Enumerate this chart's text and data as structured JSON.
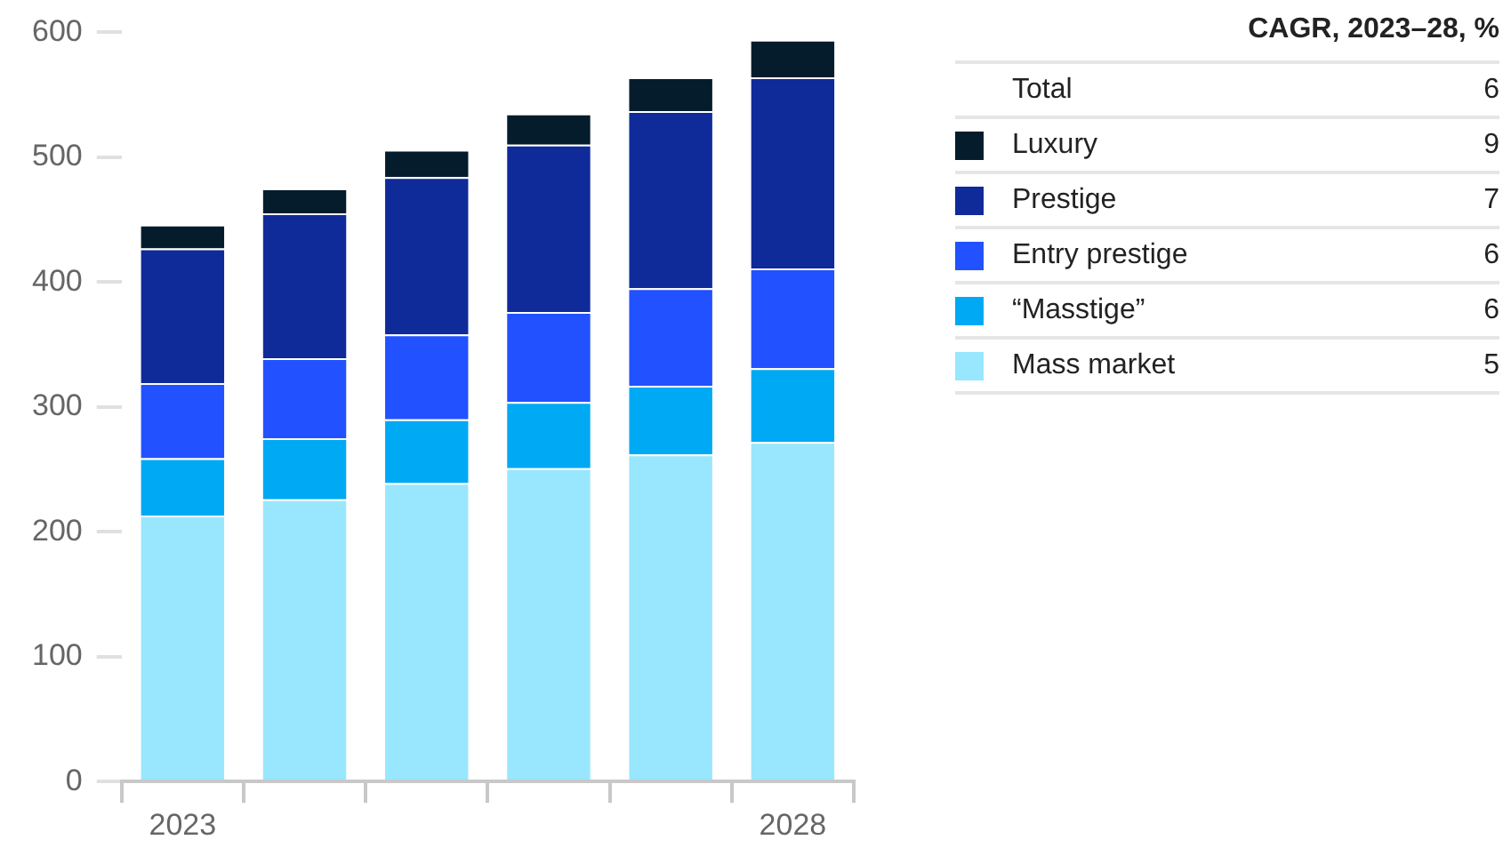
{
  "chart_data": {
    "type": "bar",
    "stacked": true,
    "categories": [
      "2023",
      null,
      null,
      null,
      null,
      "2028"
    ],
    "series": [
      {
        "name": "Mass market",
        "color": "#99e6ff",
        "values": [
          213,
          226,
          239,
          251,
          262,
          272
        ]
      },
      {
        "name": "“Masstige”",
        "color": "#00a9f4",
        "values": [
          46,
          49,
          51,
          53,
          55,
          59
        ]
      },
      {
        "name": "Entry prestige",
        "color": "#2251ff",
        "values": [
          60,
          64,
          68,
          72,
          78,
          80
        ]
      },
      {
        "name": "Prestige",
        "color": "#0f2a99",
        "values": [
          108,
          116,
          126,
          134,
          142,
          153
        ]
      },
      {
        "name": "Luxury",
        "color": "#051c2c",
        "values": [
          19,
          20,
          22,
          25,
          27,
          30
        ]
      }
    ],
    "ylim": [
      0,
      600
    ],
    "yticks": [
      0,
      100,
      200,
      300,
      400,
      500,
      600
    ],
    "grid": false,
    "legend": "top right",
    "legend_title": "CAGR, 2023–28, %",
    "annotations": [
      "Total",
      "6",
      "9",
      "7",
      "6",
      "6",
      "5"
    ]
  }
}
